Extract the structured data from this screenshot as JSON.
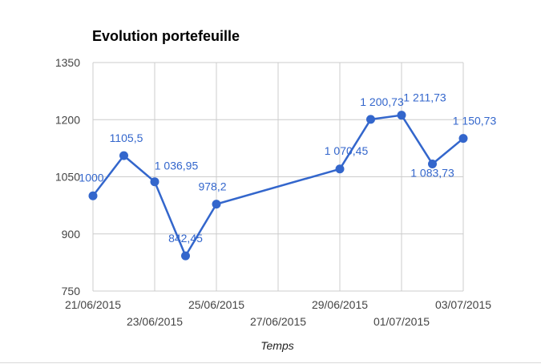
{
  "chart_data": {
    "type": "line",
    "title": "Evolution portefeuille",
    "xlabel": "Temps",
    "ylabel": "",
    "ylim": [
      750,
      1350
    ],
    "yticks": [
      750,
      900,
      1050,
      1200,
      1350
    ],
    "xlim": [
      "21/06/2015",
      "03/07/2015"
    ],
    "x_tick_labels": [
      "21/06/2015",
      "23/06/2015",
      "25/06/2015",
      "27/06/2015",
      "29/06/2015",
      "01/07/2015",
      "03/07/2015"
    ],
    "grid": true,
    "legend": "none",
    "series": [
      {
        "color": "#3366cc",
        "points": [
          {
            "x": "21/06/2015",
            "y": 1000,
            "label": "1000"
          },
          {
            "x": "22/06/2015",
            "y": 1105.5,
            "label": "1105,5"
          },
          {
            "x": "23/06/2015",
            "y": 1036.95,
            "label": "1 036,95"
          },
          {
            "x": "24/06/2015",
            "y": 842.45,
            "label": "842,45"
          },
          {
            "x": "25/06/2015",
            "y": 978.2,
            "label": "978,2"
          },
          {
            "x": "29/06/2015",
            "y": 1070.45,
            "label": "1 070,45"
          },
          {
            "x": "30/06/2015",
            "y": 1200.73,
            "label": "1 200,73"
          },
          {
            "x": "01/07/2015",
            "y": 1211.73,
            "label": "1 211,73"
          },
          {
            "x": "02/07/2015",
            "y": 1083.73,
            "label": "1 083,73"
          },
          {
            "x": "03/07/2015",
            "y": 1150.73,
            "label": "1 150,73"
          }
        ]
      }
    ]
  }
}
